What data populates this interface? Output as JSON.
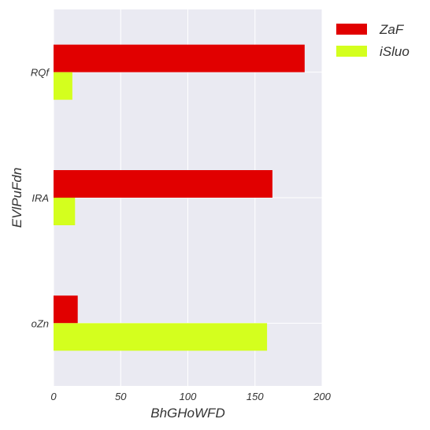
{
  "chart_data": {
    "type": "bar",
    "orientation": "horizontal",
    "categories": [
      "RQf",
      "IRA",
      "oZn"
    ],
    "series": [
      {
        "name": "ZaF",
        "values": [
          187,
          163,
          18
        ],
        "color": "#e10000"
      },
      {
        "name": "iSluo",
        "values": [
          14,
          16,
          159
        ],
        "color": "#d4ff1e"
      }
    ],
    "xlabel": "BhGHoWFD",
    "ylabel": "EVlPuFdn",
    "xlim": [
      0,
      200
    ],
    "xticks": [
      "0",
      "50",
      "100",
      "150",
      "200"
    ],
    "grid": true,
    "background": "#eaeaf2",
    "legend_position": "outside-top-right"
  }
}
